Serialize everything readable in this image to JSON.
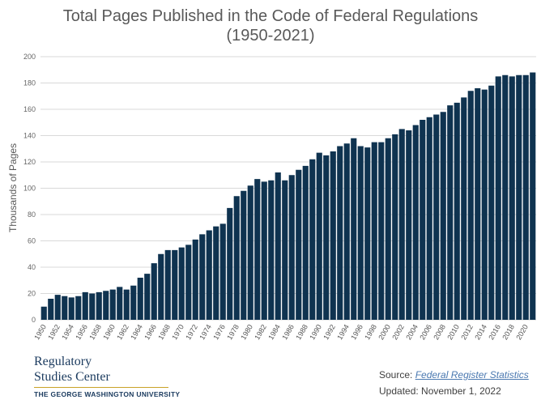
{
  "chart_data": {
    "type": "bar",
    "title": "Total Pages Published in the Code of Federal Regulations",
    "subtitle": "(1950-2021)",
    "xlabel": "",
    "ylabel": "Thousands of Pages",
    "ylim": [
      0,
      200
    ],
    "yticks": [
      0,
      20,
      40,
      60,
      80,
      100,
      120,
      140,
      160,
      180,
      200
    ],
    "grid": true,
    "color": "#0f3350",
    "categories": [
      1950,
      1951,
      1952,
      1953,
      1954,
      1955,
      1956,
      1957,
      1958,
      1959,
      1960,
      1961,
      1962,
      1963,
      1964,
      1965,
      1966,
      1967,
      1968,
      1969,
      1970,
      1971,
      1972,
      1973,
      1974,
      1975,
      1976,
      1977,
      1978,
      1979,
      1980,
      1981,
      1982,
      1983,
      1984,
      1985,
      1986,
      1987,
      1988,
      1989,
      1990,
      1991,
      1992,
      1993,
      1994,
      1995,
      1996,
      1997,
      1998,
      1999,
      2000,
      2001,
      2002,
      2003,
      2004,
      2005,
      2006,
      2007,
      2008,
      2009,
      2010,
      2011,
      2012,
      2013,
      2014,
      2015,
      2016,
      2017,
      2018,
      2019,
      2020,
      2021
    ],
    "values": [
      10,
      16,
      19,
      18,
      17,
      18,
      21,
      20,
      21,
      22,
      23,
      25,
      23,
      26,
      32,
      35,
      43,
      50,
      53,
      53,
      55,
      57,
      61,
      65,
      68,
      71,
      73,
      85,
      94,
      98,
      102,
      107,
      105,
      106,
      112,
      106,
      110,
      114,
      117,
      122,
      127,
      125,
      128,
      132,
      134,
      138,
      132,
      131,
      135,
      135,
      138,
      141,
      145,
      144,
      148,
      152,
      154,
      156,
      158,
      163,
      165,
      169,
      174,
      176,
      175,
      178,
      185,
      186,
      185,
      186,
      186,
      188
    ],
    "xtick_labels": [
      "1950",
      "1952",
      "1954",
      "1956",
      "1958",
      "1960",
      "1962",
      "1964",
      "1966",
      "1968",
      "1970",
      "1972",
      "1974",
      "1976",
      "1978",
      "1980",
      "1982",
      "1984",
      "1986",
      "1988",
      "1990",
      "1992",
      "1994",
      "1996",
      "1998",
      "2000",
      "2002",
      "2004",
      "2006",
      "2008",
      "2010",
      "2012",
      "2014",
      "2016",
      "2018",
      "2020"
    ]
  },
  "footer": {
    "logo_line1": "Regulatory",
    "logo_line2": "Studies Center",
    "logo_line3": "THE GEORGE WASHINGTON UNIVERSITY",
    "source_label": "Source: ",
    "source_link": "Federal Register Statistics",
    "updated": "Updated: November 1, 2022"
  }
}
